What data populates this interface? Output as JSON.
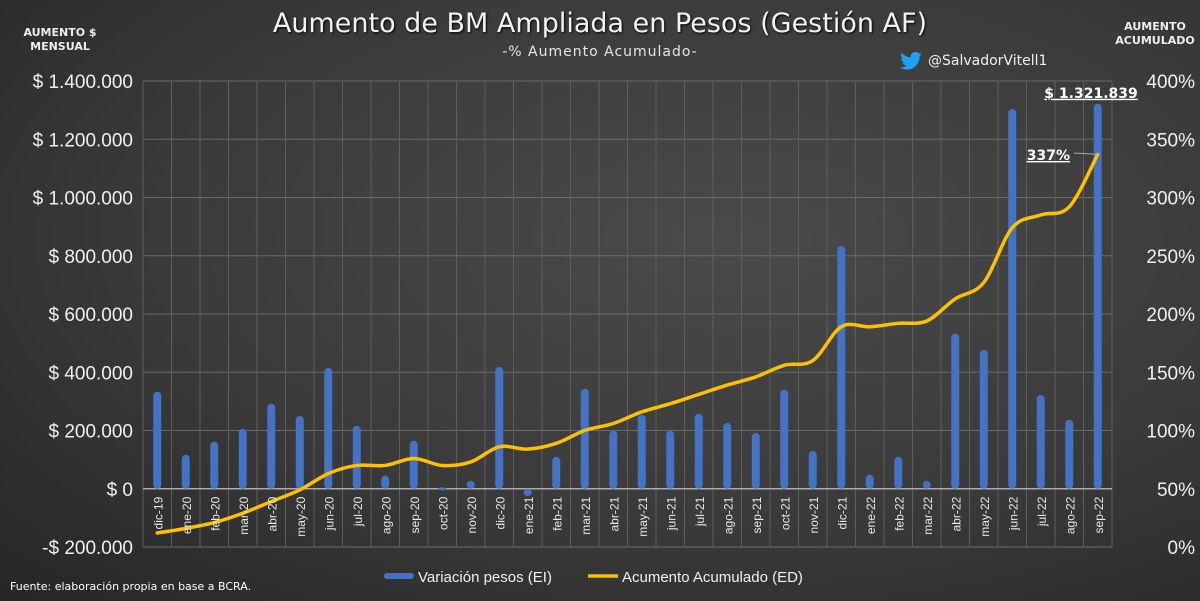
{
  "chart_data": {
    "type": "bar+line",
    "title": "Aumento de BM Ampliada en Pesos (Gestión AF)",
    "subtitle": "-% Aumento Acumulado-",
    "ylabel_left": "AUMENTO $ MENSUAL",
    "ylabel_right": "AUMENTO ACUMULADO",
    "ylim_left": [
      -200000,
      1400000
    ],
    "ylim_right": [
      0,
      400
    ],
    "yticks_left": [
      "-$ 200.000",
      "$ 0",
      "$ 200.000",
      "$ 400.000",
      "$ 600.000",
      "$ 800.000",
      "$ 1.000.000",
      "$ 1.200.000",
      "$ 1.400.000"
    ],
    "yticks_right": [
      "0%",
      "50%",
      "100%",
      "150%",
      "200%",
      "250%",
      "300%",
      "350%",
      "400%"
    ],
    "grid": true,
    "legend_position": "bottom",
    "categories": [
      "dic-19",
      "ene-20",
      "feb-20",
      "mar-20",
      "abr-20",
      "may-20",
      "jun-20",
      "jul-20",
      "ago-20",
      "sep-20",
      "oct-20",
      "nov-20",
      "dic-20",
      "ene-21",
      "feb-21",
      "mar-21",
      "abr-21",
      "may-21",
      "jun-21",
      "jul-21",
      "ago-21",
      "sep-21",
      "oct-21",
      "nov-21",
      "dic-21",
      "ene-22",
      "feb-22",
      "mar-22",
      "abr-22",
      "may-22",
      "jun-22",
      "jul-22",
      "ago-22",
      "sep-22"
    ],
    "series": [
      {
        "name": "Variación pesos (EI)",
        "type": "bar",
        "axis": "left",
        "color": "#4472c4",
        "values": [
          333000,
          117000,
          161000,
          206000,
          292000,
          250000,
          415000,
          216000,
          45000,
          165000,
          5000,
          27000,
          418000,
          -25000,
          110000,
          343000,
          199000,
          254000,
          199000,
          257000,
          226000,
          192000,
          340000,
          130000,
          834000,
          48000,
          110000,
          27000,
          532000,
          477000,
          1304000,
          322000,
          237000,
          1321839
        ]
      },
      {
        "name": "Acumento Acumulado (ED)",
        "type": "line",
        "axis": "right",
        "color": "#ffc000",
        "values": [
          12,
          16,
          21,
          29,
          39,
          49,
          63,
          70,
          70,
          76,
          70,
          73,
          86,
          84,
          89,
          100,
          106,
          116,
          123,
          131,
          139,
          146,
          156,
          160,
          189,
          189,
          192,
          194,
          213,
          227,
          274,
          285,
          292,
          337
        ]
      }
    ],
    "annotations": [
      "$ 1.321.839",
      "337%"
    ]
  },
  "handle": "@SalvadorVitell1",
  "source": "Fuente: elaboración propia en base a BCRA."
}
